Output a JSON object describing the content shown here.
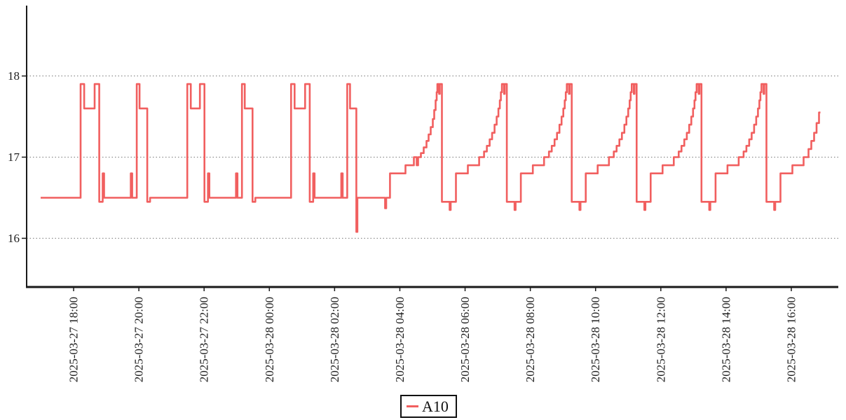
{
  "legend": {
    "label": "A10"
  },
  "chart_data": {
    "type": "line",
    "title": "",
    "xlabel": "",
    "ylabel": "",
    "grid": "dotted-horizontal",
    "legend_position": "bottom-center",
    "line_color": "#f15f5f",
    "axis_color": "#1a1a1a",
    "grid_color": "#777777",
    "time_origin": "2025-03-27 00:00",
    "x_axis": {
      "min_hours": 16.56,
      "max_hours": 41.44,
      "ticks": [
        {
          "hours": 18,
          "label": "2025-03-27 18:00"
        },
        {
          "hours": 20,
          "label": "2025-03-27 20:00"
        },
        {
          "hours": 22,
          "label": "2025-03-27 22:00"
        },
        {
          "hours": 24,
          "label": "2025-03-28 00:00"
        },
        {
          "hours": 26,
          "label": "2025-03-28 02:00"
        },
        {
          "hours": 28,
          "label": "2025-03-28 04:00"
        },
        {
          "hours": 30,
          "label": "2025-03-28 06:00"
        },
        {
          "hours": 32,
          "label": "2025-03-28 08:00"
        },
        {
          "hours": 34,
          "label": "2025-03-28 10:00"
        },
        {
          "hours": 36,
          "label": "2025-03-28 12:00"
        },
        {
          "hours": 38,
          "label": "2025-03-28 14:00"
        },
        {
          "hours": 40,
          "label": "2025-03-28 16:00"
        }
      ]
    },
    "y_axis": {
      "min": 15.4,
      "max": 18.85,
      "ticks": [
        16,
        17,
        18
      ]
    },
    "series": [
      {
        "name": "A10",
        "color": "#f15f5f",
        "segment_format": "[start_hours_since_origin, end_hours_since_origin, value] step line",
        "segments": [
          [
            16.989,
            18.215,
            16.5
          ],
          [
            18.215,
            18.323,
            17.9
          ],
          [
            18.323,
            18.645,
            17.6
          ],
          [
            18.645,
            18.785,
            17.9
          ],
          [
            18.785,
            18.892,
            16.45
          ],
          [
            18.892,
            18.935,
            16.8
          ],
          [
            18.935,
            19.753,
            16.5
          ],
          [
            19.753,
            19.796,
            16.8
          ],
          [
            19.796,
            19.935,
            16.5
          ],
          [
            19.935,
            20.022,
            17.9
          ],
          [
            20.022,
            20.258,
            17.6
          ],
          [
            20.258,
            20.344,
            16.45
          ],
          [
            20.344,
            21.484,
            16.5
          ],
          [
            21.484,
            21.591,
            17.9
          ],
          [
            21.591,
            21.871,
            17.6
          ],
          [
            21.871,
            22.011,
            17.9
          ],
          [
            22.011,
            22.118,
            16.45
          ],
          [
            22.118,
            22.161,
            16.8
          ],
          [
            22.161,
            22.978,
            16.5
          ],
          [
            22.978,
            23.022,
            16.8
          ],
          [
            23.022,
            23.161,
            16.5
          ],
          [
            23.161,
            23.247,
            17.9
          ],
          [
            23.247,
            23.484,
            17.6
          ],
          [
            23.484,
            23.57,
            16.45
          ],
          [
            23.57,
            24.667,
            16.5
          ],
          [
            24.667,
            24.774,
            17.9
          ],
          [
            24.774,
            25.097,
            17.6
          ],
          [
            25.097,
            25.237,
            17.9
          ],
          [
            25.237,
            25.344,
            16.45
          ],
          [
            25.344,
            25.387,
            16.8
          ],
          [
            25.387,
            26.204,
            16.5
          ],
          [
            26.204,
            26.247,
            16.8
          ],
          [
            26.247,
            26.387,
            16.5
          ],
          [
            26.387,
            26.473,
            17.9
          ],
          [
            26.473,
            26.667,
            17.6
          ],
          [
            26.667,
            26.699,
            16.08
          ],
          [
            26.699,
            27.548,
            16.5
          ],
          [
            27.548,
            27.581,
            16.37
          ],
          [
            27.581,
            27.699,
            16.5
          ],
          [
            27.699,
            28.172,
            16.8
          ],
          [
            28.172,
            28.43,
            16.9
          ],
          [
            28.43,
            28.516,
            17
          ],
          [
            28.516,
            28.559,
            16.9
          ],
          [
            28.559,
            28.645,
            17
          ],
          [
            28.645,
            28.731,
            17.05
          ],
          [
            28.731,
            28.817,
            17.12
          ],
          [
            28.817,
            28.882,
            17.2
          ],
          [
            28.882,
            28.946,
            17.28
          ],
          [
            28.946,
            29.011,
            17.37
          ],
          [
            29.011,
            29.054,
            17.47
          ],
          [
            29.054,
            29.097,
            17.58
          ],
          [
            29.097,
            29.129,
            17.7
          ],
          [
            29.129,
            29.151,
            17.8
          ],
          [
            29.151,
            29.204,
            17.9
          ],
          [
            29.204,
            29.226,
            17.78
          ],
          [
            29.226,
            29.29,
            17.9
          ],
          [
            29.29,
            29.527,
            16.45
          ],
          [
            29.527,
            29.559,
            16.35
          ],
          [
            29.559,
            29.72,
            16.45
          ],
          [
            29.72,
            30.086,
            16.8
          ],
          [
            30.086,
            30.43,
            16.9
          ],
          [
            30.43,
            30.581,
            17
          ],
          [
            30.581,
            30.667,
            17.07
          ],
          [
            30.667,
            30.753,
            17.14
          ],
          [
            30.753,
            30.828,
            17.22
          ],
          [
            30.828,
            30.903,
            17.3
          ],
          [
            30.903,
            30.968,
            17.4
          ],
          [
            30.968,
            31.022,
            17.5
          ],
          [
            31.022,
            31.065,
            17.6
          ],
          [
            31.065,
            31.097,
            17.7
          ],
          [
            31.097,
            31.129,
            17.8
          ],
          [
            31.129,
            31.194,
            17.9
          ],
          [
            31.194,
            31.215,
            17.78
          ],
          [
            31.215,
            31.28,
            17.9
          ],
          [
            31.28,
            31.517,
            16.45
          ],
          [
            31.517,
            31.549,
            16.35
          ],
          [
            31.549,
            31.71,
            16.45
          ],
          [
            31.71,
            32.076,
            16.8
          ],
          [
            32.076,
            32.42,
            16.9
          ],
          [
            32.42,
            32.57,
            17
          ],
          [
            32.57,
            32.656,
            17.07
          ],
          [
            32.656,
            32.742,
            17.14
          ],
          [
            32.742,
            32.818,
            17.22
          ],
          [
            32.818,
            32.893,
            17.3
          ],
          [
            32.893,
            32.957,
            17.4
          ],
          [
            32.957,
            33.011,
            17.5
          ],
          [
            33.011,
            33.054,
            17.6
          ],
          [
            33.054,
            33.086,
            17.7
          ],
          [
            33.086,
            33.119,
            17.8
          ],
          [
            33.119,
            33.183,
            17.9
          ],
          [
            33.183,
            33.205,
            17.78
          ],
          [
            33.205,
            33.269,
            17.9
          ],
          [
            33.269,
            33.506,
            16.45
          ],
          [
            33.506,
            33.538,
            16.35
          ],
          [
            33.538,
            33.699,
            16.45
          ],
          [
            33.699,
            34.065,
            16.8
          ],
          [
            34.065,
            34.409,
            16.9
          ],
          [
            34.409,
            34.559,
            17
          ],
          [
            34.559,
            34.645,
            17.07
          ],
          [
            34.645,
            34.731,
            17.14
          ],
          [
            34.731,
            34.807,
            17.22
          ],
          [
            34.807,
            34.882,
            17.3
          ],
          [
            34.882,
            34.946,
            17.4
          ],
          [
            34.946,
            35,
            17.5
          ],
          [
            35,
            35.043,
            17.6
          ],
          [
            35.043,
            35.075,
            17.7
          ],
          [
            35.075,
            35.108,
            17.8
          ],
          [
            35.108,
            35.172,
            17.9
          ],
          [
            35.172,
            35.194,
            17.78
          ],
          [
            35.194,
            35.258,
            17.9
          ],
          [
            35.258,
            35.495,
            16.45
          ],
          [
            35.495,
            35.527,
            16.35
          ],
          [
            35.527,
            35.688,
            16.45
          ],
          [
            35.688,
            36.054,
            16.8
          ],
          [
            36.054,
            36.398,
            16.9
          ],
          [
            36.398,
            36.548,
            17
          ],
          [
            36.548,
            36.634,
            17.07
          ],
          [
            36.634,
            36.72,
            17.14
          ],
          [
            36.72,
            36.796,
            17.22
          ],
          [
            36.796,
            36.871,
            17.3
          ],
          [
            36.871,
            36.935,
            17.4
          ],
          [
            36.935,
            36.989,
            17.5
          ],
          [
            36.989,
            37.032,
            17.6
          ],
          [
            37.032,
            37.064,
            17.7
          ],
          [
            37.064,
            37.097,
            17.8
          ],
          [
            37.097,
            37.161,
            17.9
          ],
          [
            37.161,
            37.183,
            17.78
          ],
          [
            37.183,
            37.247,
            17.9
          ],
          [
            37.247,
            37.484,
            16.45
          ],
          [
            37.484,
            37.516,
            16.35
          ],
          [
            37.516,
            37.677,
            16.45
          ],
          [
            37.677,
            38.043,
            16.8
          ],
          [
            38.043,
            38.387,
            16.9
          ],
          [
            38.387,
            38.537,
            17
          ],
          [
            38.537,
            38.623,
            17.07
          ],
          [
            38.623,
            38.709,
            17.14
          ],
          [
            38.709,
            38.785,
            17.22
          ],
          [
            38.785,
            38.86,
            17.3
          ],
          [
            38.86,
            38.924,
            17.4
          ],
          [
            38.924,
            38.978,
            17.5
          ],
          [
            38.978,
            39.021,
            17.6
          ],
          [
            39.021,
            39.053,
            17.7
          ],
          [
            39.053,
            39.086,
            17.8
          ],
          [
            39.086,
            39.15,
            17.9
          ],
          [
            39.15,
            39.172,
            17.78
          ],
          [
            39.172,
            39.237,
            17.9
          ],
          [
            39.237,
            39.474,
            16.45
          ],
          [
            39.474,
            39.506,
            16.35
          ],
          [
            39.506,
            39.667,
            16.45
          ],
          [
            39.667,
            40.033,
            16.8
          ],
          [
            40.033,
            40.377,
            16.9
          ],
          [
            40.377,
            40.527,
            17
          ],
          [
            40.527,
            40.613,
            17.1
          ],
          [
            40.613,
            40.699,
            17.2
          ],
          [
            40.699,
            40.775,
            17.3
          ],
          [
            40.775,
            40.85,
            17.42
          ],
          [
            40.85,
            40.893,
            17.55
          ]
        ]
      }
    ]
  }
}
